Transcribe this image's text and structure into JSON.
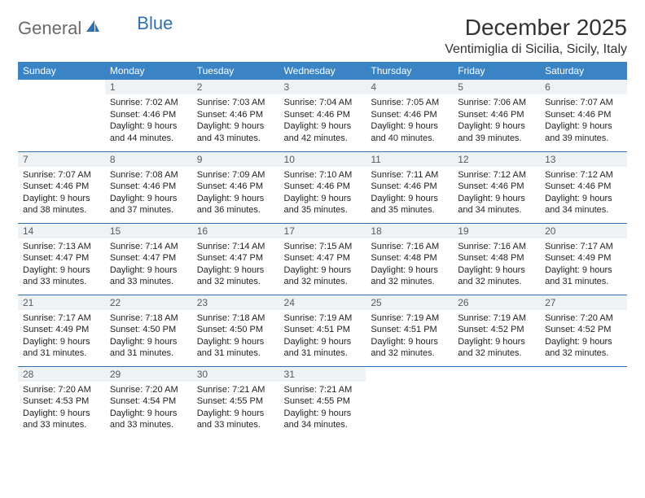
{
  "logo": {
    "part1": "General",
    "part2": "Blue"
  },
  "title": "December 2025",
  "location": "Ventimiglia di Sicilia, Sicily, Italy",
  "colors": {
    "header_bg": "#3a84c5",
    "header_text": "#ffffff",
    "daynum_bg": "#eef2f5",
    "daynum_text": "#5a5a5a",
    "row_border": "#2f6fb3",
    "body_text": "#222222",
    "logo_gray": "#6a6a6a",
    "logo_blue": "#2f6fb3"
  },
  "day_headers": [
    "Sunday",
    "Monday",
    "Tuesday",
    "Wednesday",
    "Thursday",
    "Friday",
    "Saturday"
  ],
  "weeks": [
    [
      {
        "n": "",
        "sr": "",
        "ss": "",
        "dl": ""
      },
      {
        "n": "1",
        "sr": "7:02 AM",
        "ss": "4:46 PM",
        "dl": "9 hours and 44 minutes."
      },
      {
        "n": "2",
        "sr": "7:03 AM",
        "ss": "4:46 PM",
        "dl": "9 hours and 43 minutes."
      },
      {
        "n": "3",
        "sr": "7:04 AM",
        "ss": "4:46 PM",
        "dl": "9 hours and 42 minutes."
      },
      {
        "n": "4",
        "sr": "7:05 AM",
        "ss": "4:46 PM",
        "dl": "9 hours and 40 minutes."
      },
      {
        "n": "5",
        "sr": "7:06 AM",
        "ss": "4:46 PM",
        "dl": "9 hours and 39 minutes."
      },
      {
        "n": "6",
        "sr": "7:07 AM",
        "ss": "4:46 PM",
        "dl": "9 hours and 39 minutes."
      }
    ],
    [
      {
        "n": "7",
        "sr": "7:07 AM",
        "ss": "4:46 PM",
        "dl": "9 hours and 38 minutes."
      },
      {
        "n": "8",
        "sr": "7:08 AM",
        "ss": "4:46 PM",
        "dl": "9 hours and 37 minutes."
      },
      {
        "n": "9",
        "sr": "7:09 AM",
        "ss": "4:46 PM",
        "dl": "9 hours and 36 minutes."
      },
      {
        "n": "10",
        "sr": "7:10 AM",
        "ss": "4:46 PM",
        "dl": "9 hours and 35 minutes."
      },
      {
        "n": "11",
        "sr": "7:11 AM",
        "ss": "4:46 PM",
        "dl": "9 hours and 35 minutes."
      },
      {
        "n": "12",
        "sr": "7:12 AM",
        "ss": "4:46 PM",
        "dl": "9 hours and 34 minutes."
      },
      {
        "n": "13",
        "sr": "7:12 AM",
        "ss": "4:46 PM",
        "dl": "9 hours and 34 minutes."
      }
    ],
    [
      {
        "n": "14",
        "sr": "7:13 AM",
        "ss": "4:47 PM",
        "dl": "9 hours and 33 minutes."
      },
      {
        "n": "15",
        "sr": "7:14 AM",
        "ss": "4:47 PM",
        "dl": "9 hours and 33 minutes."
      },
      {
        "n": "16",
        "sr": "7:14 AM",
        "ss": "4:47 PM",
        "dl": "9 hours and 32 minutes."
      },
      {
        "n": "17",
        "sr": "7:15 AM",
        "ss": "4:47 PM",
        "dl": "9 hours and 32 minutes."
      },
      {
        "n": "18",
        "sr": "7:16 AM",
        "ss": "4:48 PM",
        "dl": "9 hours and 32 minutes."
      },
      {
        "n": "19",
        "sr": "7:16 AM",
        "ss": "4:48 PM",
        "dl": "9 hours and 32 minutes."
      },
      {
        "n": "20",
        "sr": "7:17 AM",
        "ss": "4:49 PM",
        "dl": "9 hours and 31 minutes."
      }
    ],
    [
      {
        "n": "21",
        "sr": "7:17 AM",
        "ss": "4:49 PM",
        "dl": "9 hours and 31 minutes."
      },
      {
        "n": "22",
        "sr": "7:18 AM",
        "ss": "4:50 PM",
        "dl": "9 hours and 31 minutes."
      },
      {
        "n": "23",
        "sr": "7:18 AM",
        "ss": "4:50 PM",
        "dl": "9 hours and 31 minutes."
      },
      {
        "n": "24",
        "sr": "7:19 AM",
        "ss": "4:51 PM",
        "dl": "9 hours and 31 minutes."
      },
      {
        "n": "25",
        "sr": "7:19 AM",
        "ss": "4:51 PM",
        "dl": "9 hours and 32 minutes."
      },
      {
        "n": "26",
        "sr": "7:19 AM",
        "ss": "4:52 PM",
        "dl": "9 hours and 32 minutes."
      },
      {
        "n": "27",
        "sr": "7:20 AM",
        "ss": "4:52 PM",
        "dl": "9 hours and 32 minutes."
      }
    ],
    [
      {
        "n": "28",
        "sr": "7:20 AM",
        "ss": "4:53 PM",
        "dl": "9 hours and 33 minutes."
      },
      {
        "n": "29",
        "sr": "7:20 AM",
        "ss": "4:54 PM",
        "dl": "9 hours and 33 minutes."
      },
      {
        "n": "30",
        "sr": "7:21 AM",
        "ss": "4:55 PM",
        "dl": "9 hours and 33 minutes."
      },
      {
        "n": "31",
        "sr": "7:21 AM",
        "ss": "4:55 PM",
        "dl": "9 hours and 34 minutes."
      },
      {
        "n": "",
        "sr": "",
        "ss": "",
        "dl": ""
      },
      {
        "n": "",
        "sr": "",
        "ss": "",
        "dl": ""
      },
      {
        "n": "",
        "sr": "",
        "ss": "",
        "dl": ""
      }
    ]
  ],
  "labels": {
    "sunrise": "Sunrise:",
    "sunset": "Sunset:",
    "daylight": "Daylight:"
  }
}
